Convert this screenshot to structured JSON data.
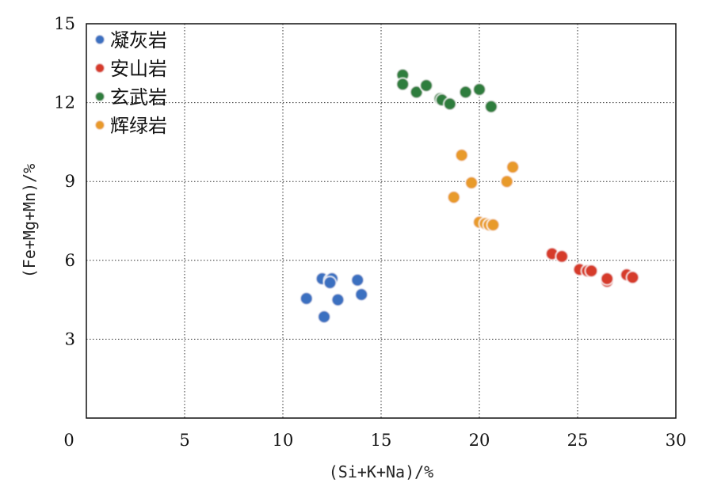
{
  "chart_data": {
    "type": "scatter",
    "xlabel": "(Si+K+Na)/%",
    "ylabel": "(Fe+Mg+Mn)/%",
    "xlim": [
      0,
      30
    ],
    "ylim": [
      0,
      15
    ],
    "x_ticks": [
      "0",
      "5",
      "10",
      "15",
      "20",
      "25",
      "30"
    ],
    "y_ticks": [
      "3",
      "6",
      "9",
      "12",
      "15"
    ],
    "grid": true,
    "legend_position": "top-left",
    "series": [
      {
        "name": "凝灰岩",
        "color": "#3a6fc0",
        "points": [
          [
            11.2,
            4.55
          ],
          [
            12.0,
            5.3
          ],
          [
            12.4,
            5.25
          ],
          [
            12.5,
            5.3
          ],
          [
            12.4,
            5.15
          ],
          [
            12.8,
            4.5
          ],
          [
            12.1,
            3.85
          ],
          [
            13.8,
            5.25
          ],
          [
            14.0,
            4.7
          ]
        ]
      },
      {
        "name": "安山岩",
        "color": "#d63a2a",
        "points": [
          [
            23.7,
            6.25
          ],
          [
            24.2,
            6.15
          ],
          [
            25.1,
            5.65
          ],
          [
            25.5,
            5.6
          ],
          [
            25.7,
            5.6
          ],
          [
            26.5,
            5.2
          ],
          [
            26.5,
            5.3
          ],
          [
            27.5,
            5.45
          ],
          [
            27.8,
            5.35
          ]
        ]
      },
      {
        "name": "玄武岩",
        "color": "#2f7d3c",
        "points": [
          [
            16.1,
            13.05
          ],
          [
            16.1,
            12.7
          ],
          [
            16.8,
            12.4
          ],
          [
            17.3,
            12.65
          ],
          [
            18.0,
            12.15
          ],
          [
            18.1,
            12.1
          ],
          [
            18.5,
            11.95
          ],
          [
            19.3,
            12.4
          ],
          [
            20.0,
            12.5
          ],
          [
            20.6,
            11.85
          ]
        ]
      },
      {
        "name": "辉绿岩",
        "color": "#e89a2a",
        "points": [
          [
            19.1,
            10.0
          ],
          [
            18.7,
            8.4
          ],
          [
            19.6,
            8.95
          ],
          [
            21.4,
            9.0
          ],
          [
            21.7,
            9.55
          ],
          [
            20.0,
            7.45
          ],
          [
            20.3,
            7.4
          ],
          [
            20.5,
            7.35
          ],
          [
            20.7,
            7.35
          ]
        ]
      }
    ]
  }
}
